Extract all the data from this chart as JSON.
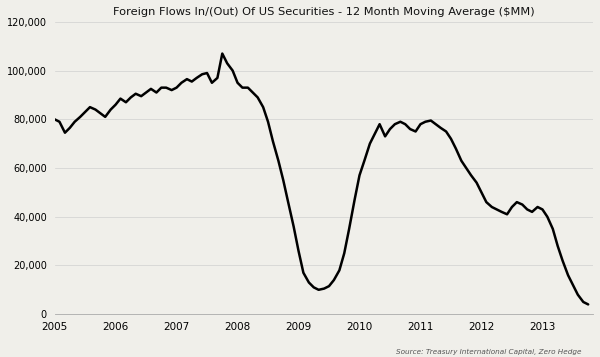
{
  "title": "Foreign Flows In/(Out) Of US Securities - 12 Month Moving Average ($MM)",
  "source_text": "Source: Treasury International Capital, Zero Hedge",
  "xlim": [
    2005.0,
    2013.83
  ],
  "ylim": [
    0,
    120000
  ],
  "yticks": [
    0,
    20000,
    40000,
    60000,
    80000,
    100000,
    120000
  ],
  "xticks": [
    2005,
    2006,
    2007,
    2008,
    2009,
    2010,
    2011,
    2012,
    2013
  ],
  "background_color": "#f0efea",
  "line_color": "#000000",
  "grid_color": "#d0d0d0",
  "x": [
    2005.0,
    2005.08,
    2005.17,
    2005.25,
    2005.33,
    2005.42,
    2005.5,
    2005.58,
    2005.67,
    2005.75,
    2005.83,
    2005.92,
    2006.0,
    2006.08,
    2006.17,
    2006.25,
    2006.33,
    2006.42,
    2006.5,
    2006.58,
    2006.67,
    2006.75,
    2006.83,
    2006.92,
    2007.0,
    2007.08,
    2007.17,
    2007.25,
    2007.33,
    2007.42,
    2007.5,
    2007.58,
    2007.67,
    2007.75,
    2007.83,
    2007.92,
    2008.0,
    2008.08,
    2008.17,
    2008.25,
    2008.33,
    2008.42,
    2008.5,
    2008.58,
    2008.67,
    2008.75,
    2008.83,
    2008.92,
    2009.0,
    2009.08,
    2009.17,
    2009.25,
    2009.33,
    2009.42,
    2009.5,
    2009.58,
    2009.67,
    2009.75,
    2009.83,
    2009.92,
    2010.0,
    2010.08,
    2010.17,
    2010.25,
    2010.33,
    2010.42,
    2010.5,
    2010.58,
    2010.67,
    2010.75,
    2010.83,
    2010.92,
    2011.0,
    2011.08,
    2011.17,
    2011.25,
    2011.33,
    2011.42,
    2011.5,
    2011.58,
    2011.67,
    2011.75,
    2011.83,
    2011.92,
    2012.0,
    2012.08,
    2012.17,
    2012.25,
    2012.33,
    2012.42,
    2012.5,
    2012.58,
    2012.67,
    2012.75,
    2012.83,
    2012.92,
    2013.0,
    2013.08,
    2013.17,
    2013.25,
    2013.33,
    2013.42,
    2013.5,
    2013.58,
    2013.67,
    2013.75
  ],
  "y": [
    80000,
    79000,
    74500,
    76500,
    79000,
    81000,
    83000,
    85000,
    84000,
    82500,
    81000,
    84000,
    86000,
    88500,
    87000,
    89000,
    90500,
    89500,
    91000,
    92500,
    91000,
    93000,
    93000,
    92000,
    93000,
    95000,
    96500,
    95500,
    97000,
    98500,
    99000,
    95000,
    97000,
    107000,
    103000,
    100000,
    95000,
    93000,
    93000,
    91000,
    89000,
    85000,
    79000,
    71000,
    63000,
    55000,
    46000,
    36000,
    26000,
    17000,
    13000,
    11000,
    10000,
    10500,
    11500,
    14000,
    18000,
    25000,
    35000,
    47000,
    57000,
    63000,
    70000,
    74000,
    78000,
    73000,
    76000,
    78000,
    79000,
    78000,
    76000,
    75000,
    78000,
    79000,
    79500,
    78000,
    76500,
    75000,
    72000,
    68000,
    63000,
    60000,
    57000,
    54000,
    50000,
    46000,
    44000,
    43000,
    42000,
    41000,
    44000,
    46000,
    45000,
    43000,
    42000,
    44000,
    43000,
    40000,
    35000,
    28000,
    22000,
    16000,
    12000,
    8000,
    5000,
    4000
  ]
}
